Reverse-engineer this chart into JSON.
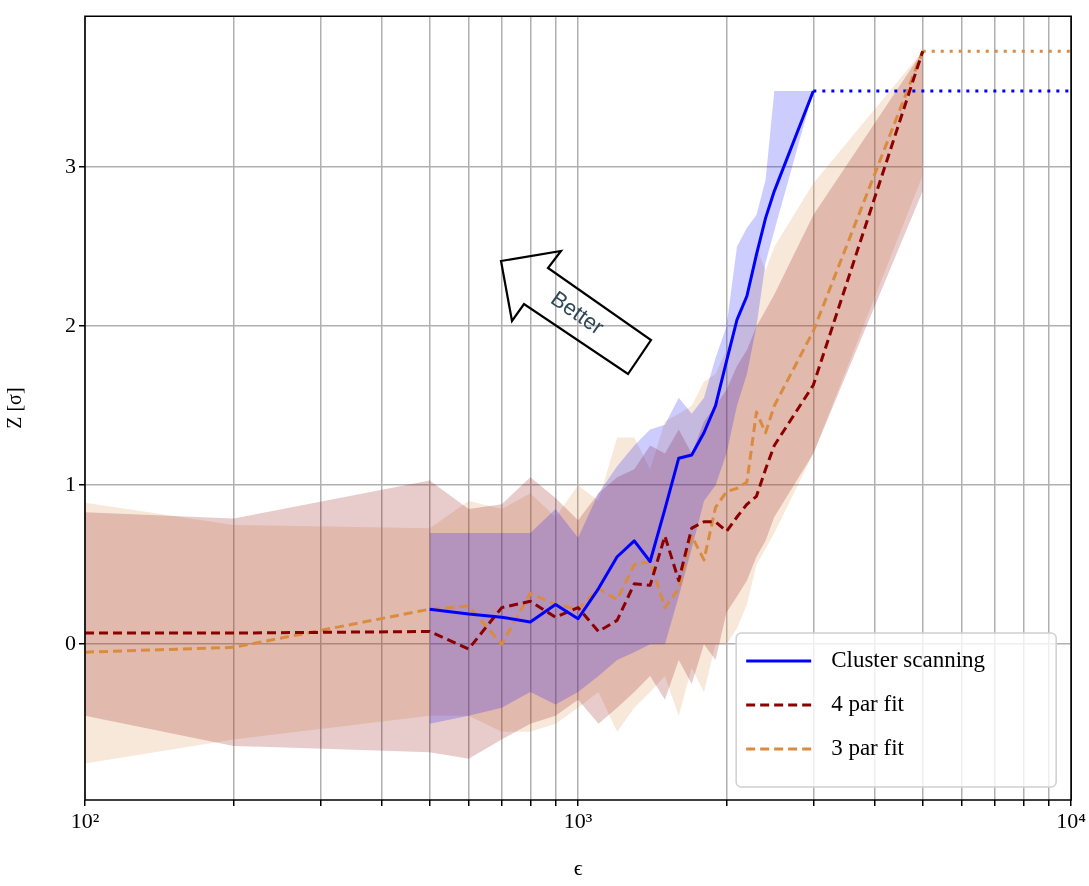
{
  "chart_data": {
    "type": "line",
    "xlabel": "ϵ",
    "ylabel": "Z [σ]",
    "log": "x",
    "grid": true,
    "legend": "bottom right",
    "xlim": [
      100,
      10000
    ],
    "ylim": [
      -0.98,
      3.95
    ],
    "xticks": [
      {
        "value": 100,
        "label": "10²"
      },
      {
        "value": 200,
        "label": null
      },
      {
        "value": 300,
        "label": null
      },
      {
        "value": 400,
        "label": null
      },
      {
        "value": 500,
        "label": null
      },
      {
        "value": 600,
        "label": null
      },
      {
        "value": 700,
        "label": null
      },
      {
        "value": 800,
        "label": null
      },
      {
        "value": 900,
        "label": null
      },
      {
        "value": 1000,
        "label": "10³"
      },
      {
        "value": 2000,
        "label": null
      },
      {
        "value": 3000,
        "label": null
      },
      {
        "value": 4000,
        "label": null
      },
      {
        "value": 5000,
        "label": null
      },
      {
        "value": 6000,
        "label": null
      },
      {
        "value": 7000,
        "label": null
      },
      {
        "value": 8000,
        "label": null
      },
      {
        "value": 9000,
        "label": null
      },
      {
        "value": 10000,
        "label": "10⁴"
      }
    ],
    "yticks": [
      0,
      1,
      2,
      3
    ],
    "annotations": [
      "Better"
    ],
    "series": [
      {
        "name": "Cluster scanning",
        "color": "#0000ff",
        "line_style": "solid",
        "x": [
          500,
          600,
          700,
          800,
          900,
          1000,
          1100,
          1200,
          1300,
          1400,
          1500,
          1600,
          1700,
          1800,
          1900,
          2000,
          2100,
          2200,
          2300,
          2400,
          2500,
          3000
        ],
        "values": [
          0.22,
          0.19,
          0.17,
          0.14,
          0.25,
          0.16,
          0.35,
          0.55,
          0.65,
          0.52,
          0.85,
          1.17,
          1.19,
          1.33,
          1.5,
          1.78,
          2.04,
          2.19,
          2.45,
          2.68,
          2.85,
          3.48
        ],
        "upper": [
          0.7,
          0.7,
          0.7,
          0.7,
          0.85,
          0.67,
          0.95,
          1.12,
          1.25,
          1.35,
          1.38,
          1.55,
          1.45,
          1.55,
          1.8,
          2.0,
          2.5,
          2.62,
          2.7,
          2.92,
          3.48,
          3.48
        ],
        "lower": [
          -0.5,
          -0.45,
          -0.4,
          -0.3,
          -0.38,
          -0.3,
          -0.2,
          -0.1,
          -0.05,
          0.0,
          0.0,
          0.3,
          0.6,
          0.9,
          1.0,
          1.2,
          1.5,
          1.7,
          2.0,
          2.4,
          2.6,
          3.48
        ]
      },
      {
        "name": "4 par fit",
        "color": "#8b0000",
        "line_style": "dashed",
        "x": [
          100,
          200,
          500,
          600,
          700,
          800,
          900,
          1000,
          1100,
          1200,
          1300,
          1400,
          1500,
          1600,
          1700,
          1800,
          1900,
          2000,
          2100,
          2200,
          2300,
          2400,
          2500,
          3000,
          5000
        ],
        "values": [
          0.07,
          0.07,
          0.08,
          -0.03,
          0.23,
          0.27,
          0.17,
          0.23,
          0.08,
          0.15,
          0.38,
          0.37,
          0.68,
          0.4,
          0.73,
          0.77,
          0.77,
          0.71,
          0.8,
          0.88,
          0.93,
          1.1,
          1.25,
          1.63,
          3.73
        ],
        "upper": [
          0.83,
          0.79,
          1.03,
          0.85,
          0.88,
          1.05,
          0.92,
          0.78,
          0.95,
          1.05,
          1.1,
          1.25,
          1.2,
          1.35,
          1.2,
          1.4,
          1.5,
          1.6,
          1.75,
          1.85,
          2.0,
          2.1,
          2.2,
          2.7,
          3.73
        ],
        "lower": [
          -0.45,
          -0.64,
          -0.68,
          -0.72,
          -0.6,
          -0.5,
          -0.45,
          -0.35,
          -0.5,
          -0.4,
          -0.3,
          -0.2,
          -0.35,
          -0.1,
          -0.25,
          0.0,
          -0.1,
          0.2,
          0.3,
          0.4,
          0.55,
          0.65,
          0.8,
          1.2,
          2.85
        ]
      },
      {
        "name": "3 par fit",
        "color": "#d98c3f",
        "line_style": "dashed",
        "x": [
          100,
          200,
          500,
          600,
          700,
          800,
          900,
          1000,
          1100,
          1200,
          1300,
          1400,
          1500,
          1600,
          1700,
          1800,
          1900,
          2000,
          2100,
          2200,
          2300,
          2400,
          2500,
          3000,
          5000
        ],
        "values": [
          -0.05,
          -0.02,
          0.22,
          0.24,
          0.0,
          0.32,
          0.25,
          0.22,
          0.35,
          0.28,
          0.5,
          0.52,
          0.23,
          0.35,
          0.68,
          0.53,
          0.86,
          0.96,
          0.98,
          1.02,
          1.46,
          1.33,
          1.5,
          1.97,
          3.73
        ],
        "upper": [
          0.89,
          0.75,
          0.73,
          0.9,
          0.85,
          0.95,
          0.8,
          1.0,
          0.9,
          1.3,
          1.3,
          1.1,
          1.4,
          1.45,
          1.5,
          1.65,
          1.7,
          1.85,
          2.0,
          2.2,
          2.5,
          2.35,
          2.5,
          2.9,
          3.73
        ],
        "lower": [
          -0.75,
          -0.6,
          -0.45,
          -0.45,
          -0.55,
          -0.55,
          -0.5,
          -0.4,
          -0.3,
          -0.55,
          -0.4,
          -0.3,
          -0.2,
          -0.45,
          -0.15,
          -0.3,
          0.0,
          0.0,
          0.1,
          0.25,
          0.5,
          0.6,
          0.7,
          1.2,
          2.95
        ]
      },
      {
        "color": "#0000ff",
        "line_style": "dotted",
        "x": [
          3000,
          10000
        ],
        "values": [
          3.48,
          3.48
        ]
      },
      {
        "color": "#d98c3f",
        "line_style": "dotted",
        "x": [
          5000,
          10000
        ],
        "values": [
          3.73,
          3.73
        ]
      }
    ]
  }
}
